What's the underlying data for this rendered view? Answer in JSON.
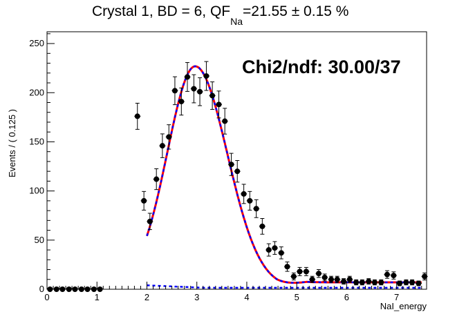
{
  "title": {
    "prefix": "Crystal 1, BD = 6, QF",
    "subscript": "Na",
    "suffix": "=21.55 ± 0.15 %"
  },
  "annotation": "Chi2/ndf: 30.00/37",
  "colors": {
    "fit_total": "#ff0000",
    "fit_signal": "#0000ff",
    "fit_background": "#0000ff",
    "data": "#000000"
  },
  "chart_data": {
    "type": "scatter",
    "xlabel": "NaI_energy",
    "ylabel": "Events / ( 0.125 )",
    "xlim": [
      0,
      7.6
    ],
    "ylim": [
      0,
      262
    ],
    "x_ticks": [
      "0",
      "1",
      "2",
      "3",
      "4",
      "5",
      "6",
      "7"
    ],
    "y_ticks": [
      "0",
      "50",
      "100",
      "150",
      "200",
      "250"
    ],
    "grid": false,
    "legend": "none",
    "series": [
      {
        "kind": "points_with_errors",
        "x": [
          0.06,
          0.19,
          0.31,
          0.44,
          0.56,
          0.69,
          0.81,
          0.94,
          1.06,
          1.81,
          1.94,
          2.06,
          2.19,
          2.31,
          2.44,
          2.56,
          2.69,
          2.81,
          2.94,
          3.06,
          3.19,
          3.31,
          3.44,
          3.56,
          3.69,
          3.81,
          3.94,
          4.06,
          4.19,
          4.31,
          4.44,
          4.56,
          4.69,
          4.81,
          4.94,
          5.06,
          5.19,
          5.31,
          5.44,
          5.56,
          5.69,
          5.81,
          5.94,
          6.06,
          6.19,
          6.31,
          6.44,
          6.56,
          6.69,
          6.81,
          6.94,
          7.06,
          7.19,
          7.31,
          7.44,
          7.56
        ],
        "y": [
          0,
          0,
          0,
          0,
          0,
          0,
          0,
          0,
          0,
          176,
          90,
          69,
          112,
          146,
          155,
          202,
          191,
          216,
          204,
          201,
          217,
          197,
          188,
          171,
          127,
          120,
          97,
          90,
          82,
          64,
          40,
          42,
          37,
          23,
          13,
          18,
          18,
          10,
          16,
          12,
          10,
          10,
          8,
          10,
          7,
          7,
          8,
          7,
          7,
          15,
          14,
          6,
          7,
          7,
          6,
          13
        ],
        "yerr": [
          0,
          0,
          0,
          0,
          0,
          0,
          0,
          0,
          0,
          13.3,
          9.5,
          8.3,
          10.6,
          12.1,
          12.4,
          14.2,
          13.8,
          14.7,
          14.3,
          14.2,
          14.7,
          14.0,
          13.7,
          13.1,
          11.3,
          11.0,
          9.8,
          9.5,
          9.1,
          8.0,
          6.3,
          6.5,
          6.1,
          4.8,
          3.6,
          4.2,
          4.2,
          3.2,
          4.0,
          3.5,
          3.2,
          3.2,
          2.8,
          3.2,
          2.6,
          2.6,
          2.8,
          2.6,
          2.6,
          3.9,
          3.7,
          2.4,
          2.6,
          2.6,
          2.4,
          3.6
        ]
      },
      {
        "kind": "fit_total",
        "range": [
          2.0,
          7.5
        ],
        "gauss_amp": 225,
        "gauss_mean": 2.97,
        "gauss_sigma_left": 0.56,
        "gauss_sigma_right": 0.64,
        "bkg_start": 4.6,
        "bkg_end": 6.7
      },
      {
        "kind": "fit_background",
        "range": [
          2.0,
          7.5
        ],
        "start": 4.0,
        "slope": 2.2,
        "floor": 1.5
      }
    ]
  }
}
